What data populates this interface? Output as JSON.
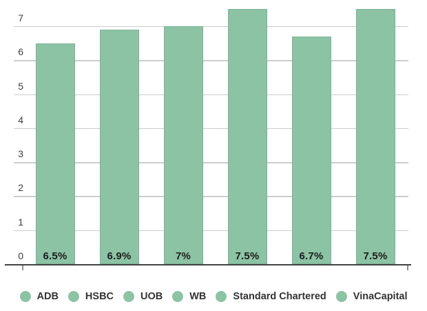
{
  "chart_data": {
    "type": "bar",
    "categories": [
      "ADB",
      "HSBC",
      "UOB",
      "WB",
      "Standard Chartered",
      "VinaCapital"
    ],
    "values": [
      6.5,
      6.9,
      7,
      7.5,
      6.7,
      7.5
    ],
    "bar_labels": [
      "6.5%",
      "6.9%",
      "7%",
      "7.5%",
      "6.7%",
      "7.5%"
    ],
    "title": "",
    "xlabel": "",
    "ylabel": "",
    "ylim": [
      0,
      7.8
    ],
    "yticks": [
      0,
      1,
      2,
      3,
      4,
      5,
      6,
      7
    ],
    "grid": true,
    "legend_position": "bottom",
    "colors": {
      "bar": "#8cc3a4",
      "bar_border": "#7ab294",
      "grid_line": "#cccccc",
      "axis_line": "#424242",
      "tick": "#8f8f8f",
      "axis_label_text": "#3d3d3d",
      "value_label_text": "#1c1c1c",
      "legend_text": "#333333",
      "background": "#ffffff"
    }
  }
}
